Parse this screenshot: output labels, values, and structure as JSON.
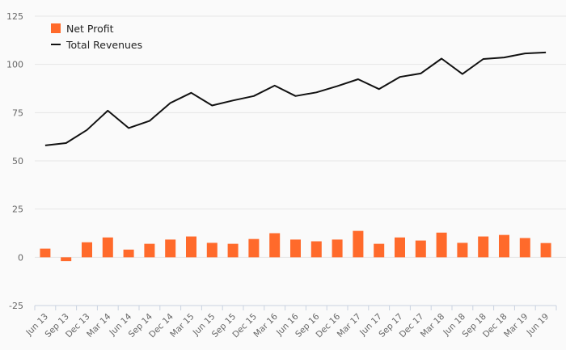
{
  "chart_data": {
    "type": "bar",
    "title": "",
    "xlabel": "",
    "ylabel": "",
    "ylim": [
      -25,
      125
    ],
    "yticks": [
      -25,
      0,
      25,
      50,
      75,
      100,
      125
    ],
    "grid": true,
    "legend_position": "top-left",
    "categories": [
      "Jun 13",
      "Sep 13",
      "Dec 13",
      "Mar 14",
      "Jun 14",
      "Sep 14",
      "Dec 14",
      "Mar 15",
      "Jun 15",
      "Sep 15",
      "Dec 15",
      "Mar 16",
      "Jun 16",
      "Sep 16",
      "Dec 16",
      "Mar 17",
      "Jun 17",
      "Sep 17",
      "Dec 17",
      "Mar 18",
      "Jun 18",
      "Sep 18",
      "Dec 18",
      "Mar 19",
      "Jun 19"
    ],
    "series": [
      {
        "name": "Net Profit",
        "kind": "bar",
        "color": "#ff6a2b",
        "values": [
          4.5,
          -2,
          7.8,
          10.3,
          4,
          7,
          9.2,
          10.8,
          7.5,
          7,
          9.5,
          12.5,
          9.2,
          8.3,
          9.2,
          13.7,
          7,
          10.3,
          8.7,
          12.8,
          7.5,
          10.8,
          11.6,
          10,
          7.4
        ]
      },
      {
        "name": "Total Revenues",
        "kind": "line",
        "color": "#111111",
        "values": [
          58,
          59.2,
          66,
          76,
          67,
          70.7,
          80,
          85.3,
          78.7,
          81.3,
          83.6,
          89,
          83.6,
          85.5,
          88.7,
          92.3,
          87.2,
          93.5,
          95.3,
          103,
          95,
          102.8,
          103.6,
          105.7,
          106.2
        ]
      }
    ]
  }
}
